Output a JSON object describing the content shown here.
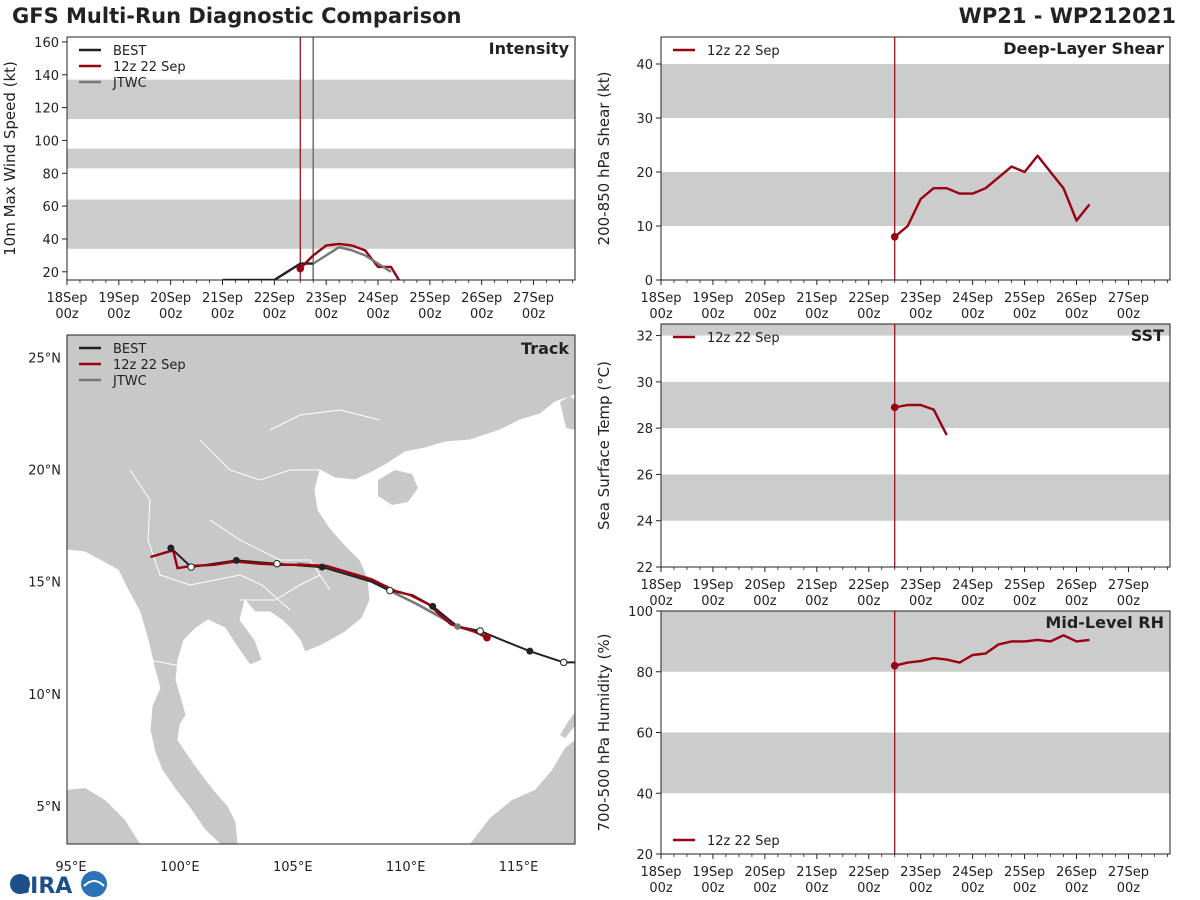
{
  "header": {
    "title": "GFS Multi-Run Diagnostic Comparison",
    "storm": "WP21 - WP212021"
  },
  "colors": {
    "best": "#222222",
    "model": "#990011",
    "jtwc": "#777777",
    "band": "#cccccc",
    "land": "#c8c8c8"
  },
  "logo": {
    "text": "CIRA"
  },
  "time_ticks": [
    "18Sep\n00z",
    "19Sep\n00z",
    "20Sep\n00z",
    "21Sep\n00z",
    "22Sep\n00z",
    "23Sep\n00z",
    "24Sep\n00z",
    "25Sep\n00z",
    "26Sep\n00z",
    "27Sep\n00z"
  ],
  "chart_data": [
    {
      "id": "intensity",
      "type": "line",
      "title": "Intensity",
      "ylabel": "10m Max Wind Speed (kt)",
      "xlim": [
        0,
        9.8
      ],
      "ylim": [
        15,
        163
      ],
      "yticks": [
        20,
        40,
        60,
        80,
        100,
        120,
        140,
        160
      ],
      "bands": [
        [
          34,
          64
        ],
        [
          83,
          95
        ],
        [
          113,
          137
        ]
      ],
      "init_time": 4.5,
      "jtwc_time": 4.75,
      "legend": [
        "BEST",
        "12z 22 Sep",
        "JTWC"
      ],
      "series": [
        {
          "name": "BEST",
          "color": "#222222",
          "x": [
            3,
            3.25,
            3.5,
            3.75,
            4,
            4.25,
            4.5,
            4.75
          ],
          "y": [
            15,
            15,
            15,
            15,
            15,
            20,
            25,
            25
          ]
        },
        {
          "name": "12z 22 Sep",
          "color": "#990011",
          "x": [
            4.5,
            4.75,
            5,
            5.25,
            5.5,
            5.75,
            6,
            6.25,
            6.5
          ],
          "y": [
            22,
            30,
            36,
            37,
            36,
            33,
            23,
            23,
            10
          ]
        },
        {
          "name": "JTWC",
          "color": "#777777",
          "x": [
            4.75,
            5,
            5.25,
            5.5,
            5.75,
            6,
            6.25
          ],
          "y": [
            25,
            30,
            35,
            33,
            30,
            25,
            20
          ]
        }
      ],
      "markers": [
        {
          "x": 4.5,
          "y": 22
        }
      ]
    },
    {
      "id": "shear",
      "type": "line",
      "title": "Deep-Layer Shear",
      "ylabel": "200-850 hPa Shear (kt)",
      "xlim": [
        0,
        9.8
      ],
      "ylim": [
        0,
        45
      ],
      "yticks": [
        0,
        10,
        20,
        30,
        40
      ],
      "bands": [
        [
          10,
          20
        ],
        [
          30,
          40
        ]
      ],
      "init_time": 4.5,
      "legend": [
        "12z 22 Sep"
      ],
      "series": [
        {
          "name": "12z 22 Sep",
          "color": "#990011",
          "x": [
            4.5,
            4.75,
            5,
            5.25,
            5.5,
            5.75,
            6,
            6.25,
            6.5,
            6.75,
            7,
            7.25,
            7.5,
            7.75,
            8,
            8.25
          ],
          "y": [
            8,
            10,
            15,
            17,
            17,
            16,
            16,
            17,
            19,
            21,
            20,
            23,
            20,
            17,
            11,
            14
          ]
        }
      ],
      "markers": [
        {
          "x": 4.5,
          "y": 8
        }
      ]
    },
    {
      "id": "sst",
      "type": "line",
      "title": "SST",
      "ylabel": "Sea Surface Temp (°C)",
      "xlim": [
        0,
        9.8
      ],
      "ylim": [
        22,
        32.5
      ],
      "yticks": [
        22,
        24,
        26,
        28,
        30,
        32
      ],
      "bands": [
        [
          24,
          26
        ],
        [
          28,
          30
        ],
        [
          32,
          34
        ]
      ],
      "init_time": 4.5,
      "legend": [
        "12z 22 Sep"
      ],
      "series": [
        {
          "name": "12z 22 Sep",
          "color": "#990011",
          "x": [
            4.5,
            4.75,
            5,
            5.25,
            5.5
          ],
          "y": [
            28.9,
            29.0,
            29.0,
            28.8,
            27.7
          ]
        }
      ],
      "markers": [
        {
          "x": 4.5,
          "y": 28.9
        }
      ]
    },
    {
      "id": "rh",
      "type": "line",
      "title": "Mid-Level RH",
      "ylabel": "700-500 hPa Humidity (%)",
      "xlim": [
        0,
        9.8
      ],
      "ylim": [
        20,
        100
      ],
      "yticks": [
        20,
        40,
        60,
        80,
        100
      ],
      "bands": [
        [
          40,
          60
        ],
        [
          80,
          100
        ]
      ],
      "init_time": 4.5,
      "legend": [
        "12z 22 Sep"
      ],
      "series": [
        {
          "name": "12z 22 Sep",
          "color": "#990011",
          "x": [
            4.5,
            4.75,
            5,
            5.25,
            5.5,
            5.75,
            6,
            6.25,
            6.5,
            6.75,
            7,
            7.25,
            7.5,
            7.75,
            8,
            8.25
          ],
          "y": [
            82,
            83,
            83.5,
            84.5,
            84,
            83,
            85.5,
            86,
            89,
            90,
            90,
            90.5,
            90,
            92,
            90,
            90.5
          ]
        }
      ],
      "markers": [
        {
          "x": 4.5,
          "y": 82
        }
      ]
    },
    {
      "id": "track",
      "type": "scatter",
      "title": "Track",
      "xlim": [
        95,
        117.5
      ],
      "ylim": [
        3.3,
        26
      ],
      "xtick_labels": [
        "95°E",
        "100°E",
        "105°E",
        "110°E",
        "115°E"
      ],
      "xtick_values": [
        95,
        100,
        105,
        110,
        115
      ],
      "ytick_labels": [
        "5°N",
        "10°N",
        "15°N",
        "20°N",
        "25°N"
      ],
      "ytick_values": [
        5,
        10,
        15,
        20,
        25
      ],
      "legend": [
        "BEST",
        "12z 22 Sep",
        "JTWC"
      ],
      "best": [
        [
          117.5,
          11.4
        ],
        [
          117,
          11.4
        ],
        [
          115.5,
          11.9
        ],
        [
          114.5,
          12.3
        ],
        [
          113.3,
          12.8
        ],
        [
          112.3,
          13.0
        ],
        [
          111.2,
          13.9
        ],
        [
          110.3,
          14.4
        ],
        [
          109.3,
          14.6
        ],
        [
          108.5,
          15.0
        ],
        [
          106.3,
          15.65
        ],
        [
          104.3,
          15.8
        ],
        [
          102.5,
          15.95
        ],
        [
          100.5,
          15.65
        ],
        [
          99.6,
          16.5
        ]
      ],
      "best_filled": [
        [
          115.5,
          11.9
        ],
        [
          111.2,
          13.9
        ],
        [
          106.3,
          15.65
        ],
        [
          102.5,
          15.95
        ],
        [
          99.6,
          16.5
        ]
      ],
      "best_open": [
        [
          117,
          11.4
        ],
        [
          113.3,
          12.8
        ],
        [
          109.3,
          14.6
        ],
        [
          104.3,
          15.8
        ],
        [
          100.5,
          15.65
        ]
      ],
      "model": [
        [
          113.6,
          12.5
        ],
        [
          113.0,
          12.8
        ],
        [
          112.0,
          13.1
        ],
        [
          111.0,
          14.0
        ],
        [
          110.2,
          14.4
        ],
        [
          109.5,
          14.6
        ],
        [
          108.5,
          15.1
        ],
        [
          107.5,
          15.4
        ],
        [
          106.5,
          15.7
        ],
        [
          105.5,
          15.75
        ],
        [
          104.5,
          15.75
        ],
        [
          103.5,
          15.8
        ],
        [
          102.5,
          15.9
        ],
        [
          101.5,
          15.75
        ],
        [
          100.5,
          15.7
        ],
        [
          99.9,
          15.6
        ],
        [
          99.7,
          16.4
        ],
        [
          98.7,
          16.1
        ]
      ],
      "model_end": [
        113.6,
        12.5
      ],
      "jtwc": [
        [
          113.6,
          12.6
        ],
        [
          112.3,
          13.0
        ],
        [
          110.5,
          14.0
        ],
        [
          108.5,
          15.0
        ],
        [
          106.6,
          15.6
        ],
        [
          105.2,
          15.8
        ]
      ],
      "jtwc_points": [
        [
          112.3,
          13.0
        ]
      ]
    }
  ]
}
